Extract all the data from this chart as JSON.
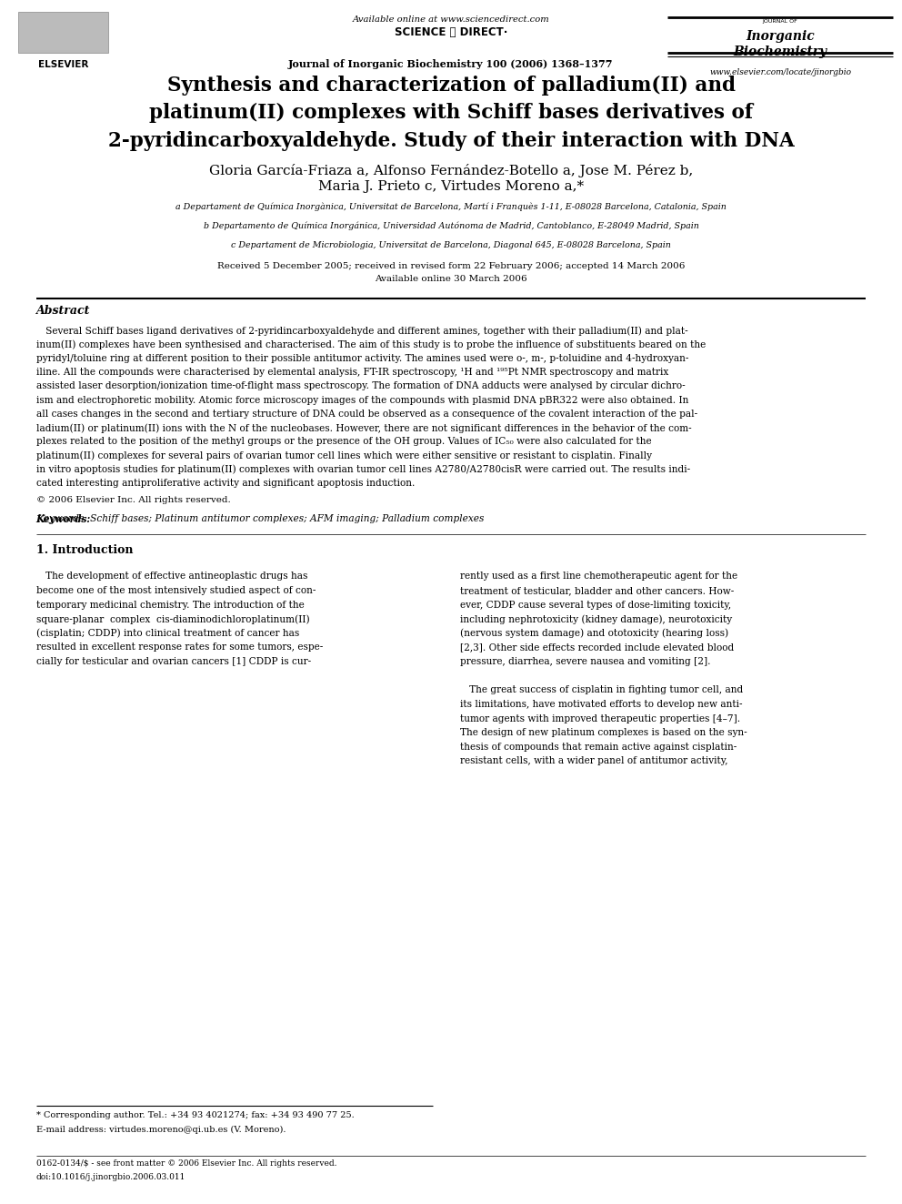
{
  "page_width": 9.92,
  "page_height": 13.23,
  "bg_color": "#ffffff",
  "header": {
    "available_online": "Available online at www.sciencedirect.com",
    "journal_line": "Journal of Inorganic Biochemistry 100 (2006) 1368–1377",
    "website": "www.elsevier.com/locate/jinorgbio"
  },
  "title": "Synthesis and characterization of palladium(II) and\nplatinum(II) complexes with Schiff bases derivatives of\n2-pyridincarboxyaldehyde. Study of their interaction with DNA",
  "authors_line1": "Gloria García-Friaza a, Alfonso Fernández-Botello a, Jose M. Pérez b,",
  "authors_line2": "Maria J. Prieto c, Virtudes Moreno a,*",
  "affiliations": [
    "a Departament de Química Inorgànica, Universitat de Barcelona, Martí i Franquès 1-11, E-08028 Barcelona, Catalonia, Spain",
    "b Departamento de Química Inorgánica, Universidad Autónoma de Madrid, Cantoblanco, E-28049 Madrid, Spain",
    "c Departament de Microbiologia, Universitat de Barcelona, Diagonal 645, E-08028 Barcelona, Spain"
  ],
  "received_line": "Received 5 December 2005; received in revised form 22 February 2006; accepted 14 March 2006",
  "available_online_date": "Available online 30 March 2006",
  "abstract_title": "Abstract",
  "abstract_lines": [
    "   Several Schiff bases ligand derivatives of 2-pyridincarboxyaldehyde and different amines, together with their palladium(II) and plat-",
    "inum(II) complexes have been synthesised and characterised. The aim of this study is to probe the influence of substituents beared on the",
    "pyridyl/toluine ring at different position to their possible antitumor activity. The amines used were o-, m-, p-toluidine and 4-hydroxyan-",
    "iline. All the compounds were characterised by elemental analysis, FT-IR spectroscopy, ¹H and ¹⁹⁵Pt NMR spectroscopy and matrix",
    "assisted laser desorption/ionization time-of-flight mass spectroscopy. The formation of DNA adducts were analysed by circular dichro-",
    "ism and electrophoretic mobility. Atomic force microscopy images of the compounds with plasmid DNA pBR322 were also obtained. In",
    "all cases changes in the second and tertiary structure of DNA could be observed as a consequence of the covalent interaction of the pal-",
    "ladium(II) or platinum(II) ions with the N of the nucleobases. However, there are not significant differences in the behavior of the com-",
    "plexes related to the position of the methyl groups or the presence of the OH group. Values of IC₅₀ were also calculated for the",
    "platinum(II) complexes for several pairs of ovarian tumor cell lines which were either sensitive or resistant to cisplatin. Finally",
    "in vitro apoptosis studies for platinum(II) complexes with ovarian tumor cell lines A2780/A2780cisR were carried out. The results indi-",
    "cated interesting antiproliferative activity and significant apoptosis induction."
  ],
  "copyright": "© 2006 Elsevier Inc. All rights reserved.",
  "keywords_label": "Keywords:",
  "keywords": "Schiff bases; Platinum antitumor complexes; AFM imaging; Palladium complexes",
  "section1_title": "1. Introduction",
  "left_col_lines": [
    "   The development of effective antineoplastic drugs has",
    "become one of the most intensively studied aspect of con-",
    "temporary medicinal chemistry. The introduction of the",
    "square-planar  complex  cis-diaminodichloroplatinum(II)",
    "(cisplatin; CDDP) into clinical treatment of cancer has",
    "resulted in excellent response rates for some tumors, espe-",
    "cially for testicular and ovarian cancers [1] CDDP is cur-"
  ],
  "right_col_lines": [
    "rently used as a first line chemotherapeutic agent for the",
    "treatment of testicular, bladder and other cancers. How-",
    "ever, CDDP cause several types of dose-limiting toxicity,",
    "including nephrotoxicity (kidney damage), neurotoxicity",
    "(nervous system damage) and ototoxicity (hearing loss)",
    "[2,3]. Other side effects recorded include elevated blood",
    "pressure, diarrhea, severe nausea and vomiting [2].",
    "",
    "   The great success of cisplatin in fighting tumor cell, and",
    "its limitations, have motivated efforts to develop new anti-",
    "tumor agents with improved therapeutic properties [4–7].",
    "The design of new platinum complexes is based on the syn-",
    "thesis of compounds that remain active against cisplatin-",
    "resistant cells, with a wider panel of antitumor activity,"
  ],
  "footnote_star": "* Corresponding author. Tel.: +34 93 4021274; fax: +34 93 490 77 25.",
  "footnote_email": "E-mail address: virtudes.moreno@qi.ub.es (V. Moreno).",
  "footnote_issn": "0162-0134/$ - see front matter © 2006 Elsevier Inc. All rights reserved.",
  "footnote_doi": "doi:10.1016/j.jinorgbio.2006.03.011"
}
